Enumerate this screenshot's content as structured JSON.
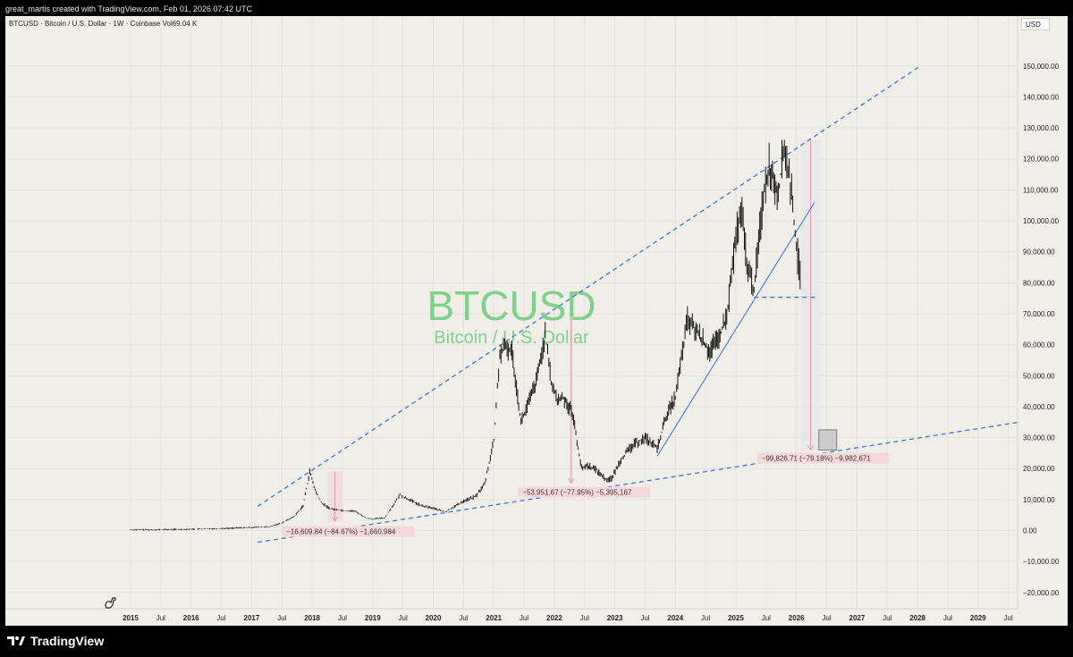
{
  "header": "great_martis created with TradingView.com, Feb 01, 2026 07:42 UTC",
  "symbol_line": "BTCUSD · Bitcoin / U.S. Dollar · 1W · Coinbase  Vol69.04 K",
  "currency": "USD",
  "brand": "TradingView",
  "colors": {
    "background": "#f0efe7",
    "candle": "#111111",
    "trendline": "#3d6fe0",
    "watermark": "#7fd088",
    "measure_box": "#f3d9dc",
    "measure_label": "#f6d8d8"
  },
  "chart_data": {
    "type": "line",
    "symbol": "BTCUSD",
    "description": "Bitcoin / U.S. Dollar",
    "interval": "1W",
    "exchange": "Coinbase",
    "volume": "Vol69.04 K",
    "watermark": {
      "symbol": "BTCUSD",
      "description": "Bitcoin / U.S. Dollar"
    },
    "series": [
      {
        "x": [
          2015.0,
          2015.5,
          2016.0,
          2016.5,
          2017.0,
          2017.3,
          2017.5,
          2017.7,
          2017.85,
          2017.96,
          2018.05,
          2018.15,
          2018.3,
          2018.5,
          2018.7,
          2018.9,
          2019.0,
          2019.2,
          2019.45,
          2019.6,
          2019.8,
          2020.0,
          2020.2,
          2020.5,
          2020.7,
          2020.85,
          2021.0,
          2021.1,
          2021.2,
          2021.3,
          2021.45,
          2021.55,
          2021.7,
          2021.85,
          2021.95,
          2022.05,
          2022.15,
          2022.3,
          2022.45,
          2022.55,
          2022.7,
          2022.85,
          2022.95,
          2023.1,
          2023.3,
          2023.5,
          2023.7,
          2023.85,
          2024.0,
          2024.2,
          2024.4,
          2024.55,
          2024.7,
          2024.85,
          2025.0,
          2025.1,
          2025.2,
          2025.3,
          2025.45,
          2025.55,
          2025.7,
          2025.8,
          2025.9,
          2026.0,
          2026.08
        ],
        "y": [
          250,
          270,
          430,
          650,
          1000,
          1200,
          2500,
          4500,
          8000,
          19000,
          13000,
          9000,
          7000,
          6500,
          6300,
          4000,
          3700,
          4100,
          11500,
          10000,
          8000,
          7200,
          6000,
          9500,
          11000,
          15000,
          29000,
          57000,
          59000,
          58000,
          35000,
          40000,
          48000,
          63000,
          48000,
          42000,
          43000,
          38000,
          20000,
          21000,
          19500,
          16500,
          16800,
          23000,
          27500,
          30000,
          26500,
          37000,
          43000,
          68000,
          63000,
          58000,
          61000,
          69000,
          95000,
          102000,
          84000,
          78000,
          108000,
          118000,
          109000,
          124000,
          112000,
          92000,
          78500
        ]
      }
    ],
    "annotations": {
      "measurements": [
        {
          "label": "−16,609.84 (−84.67%) −1,660,984",
          "from": 19000,
          "to": 3000
        },
        {
          "label": "−53,951.67 (−77.95%) −5,395,167",
          "from": 69000,
          "to": 15300
        },
        {
          "label": "−99,826.71 (−79.18%) −9,982,671",
          "from": 126000,
          "to": 26000
        }
      ],
      "trendlines": [
        {
          "style": "dashed",
          "points": [
            [
              2017.1,
              7800
            ],
            [
              2028.05,
              150000
            ]
          ]
        },
        {
          "style": "dashed",
          "points": [
            [
              2017.1,
              -3800
            ],
            [
              2029.65,
              34900
            ]
          ]
        },
        {
          "style": "solid",
          "points": [
            [
              2023.7,
              24000
            ],
            [
              2026.3,
              106000
            ]
          ]
        },
        {
          "style": "dashed",
          "points": [
            [
              2025.3,
              75300
            ],
            [
              2026.35,
              75300
            ]
          ]
        }
      ]
    },
    "x_ticks": [
      "2015",
      "Jul",
      "2016",
      "Jul",
      "2017",
      "Jul",
      "2018",
      "Jul",
      "2019",
      "Jul",
      "2020",
      "Jul",
      "2021",
      "Jul",
      "2022",
      "Jul",
      "2023",
      "Jul",
      "2024",
      "Jul",
      "2025",
      "Jul",
      "2026",
      "Jul",
      "2027",
      "Jul",
      "2028",
      "Jul",
      "2029",
      "Jul"
    ],
    "y_ticks": [
      "150,000.00",
      "140,000.00",
      "130,000.00",
      "120,000.00",
      "110,000.00",
      "100,000.00",
      "90,000.00",
      "80,000.00",
      "70,000.00",
      "60,000.00",
      "50,000.00",
      "40,000.00",
      "30,000.00",
      "20,000.00",
      "10,000.00",
      "0.00",
      "−10,000.00",
      "−20,000.00"
    ],
    "ylim": [
      -22000,
      160000
    ],
    "xlim": [
      2014.5,
      2029.8
    ],
    "grid": true,
    "legend": "none"
  }
}
